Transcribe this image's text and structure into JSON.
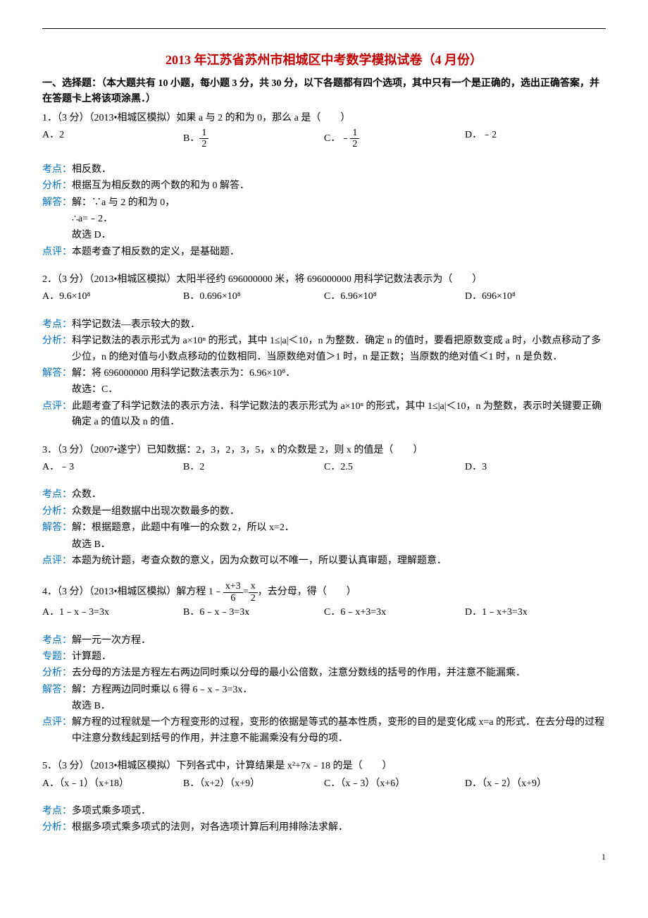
{
  "colors": {
    "red": "#c00000",
    "blue": "#0070c0",
    "text": "#000000",
    "bg": "#ffffff"
  },
  "title": "2013 年江苏省苏州市相城区中考数学模拟试卷（4 月份）",
  "section1": "一、选择题：（本大题共有 10 小题，每小题 3 分，共 30 分，以下各题都有四个选项，其中只有一个是正确的，选出正确答案，并在答题卡上将该项涂黑．）",
  "q1": {
    "text": "1．（3 分）（2013•相城区模拟）如果 a 与 2 的和为 0，那么 a 是（　　）",
    "A": "A．2",
    "B_pre": "B．",
    "B_num": "1",
    "B_den": "2",
    "C_pre": "C．﹣",
    "C_num": "1",
    "C_den": "2",
    "D": "D．﹣2",
    "kd": "相反数．",
    "fx": "根据互为相反数的两个数的和为 0 解答．",
    "jd1": "解：∵a 与 2 的和为 0，",
    "jd2": "∴a=﹣2．",
    "jd3": "故选 D．",
    "dp": "本题考查了相反数的定义，是基础题．"
  },
  "q2": {
    "text": "2．（3 分）（2013•相城区模拟）太阳半径约 696000000 米，将 696000000 用科学记数法表示为（　　）",
    "A": "A．9.6×10⁸",
    "B": "B．0.696×10⁸",
    "C": "C．6.96×10⁸",
    "D": "D．696×10⁸",
    "kd": "科学记数法—表示较大的数．",
    "fx": "科学记数法的表示形式为 a×10ⁿ 的形式，其中 1≤|a|＜10，n 为整数．确定 n 的值时，要看把原数变成 a 时，小数点移动了多少位，n 的绝对值与小数点移动的位数相同．当原数绝对值＞1 时，n 是正数；当原数的绝对值＜1 时，n 是负数．",
    "jd1": "解：将 696000000 用科学记数法表示为：6.96×10⁸．",
    "jd2": "故选：C．",
    "dp": "此题考查了科学记数法的表示方法．科学记数法的表示形式为 a×10ⁿ 的形式，其中 1≤|a|＜10，n 为整数，表示时关键要正确确定 a 的值以及 n 的值．"
  },
  "q3": {
    "text": "3．（3 分）（2007•遂宁）已知数据：2，3，2，3，5，x 的众数是 2，则 x 的值是（　　）",
    "A": "A．﹣3",
    "B": "B．2",
    "C": "C．2.5",
    "D": "D．3",
    "kd": "众数．",
    "fx": "众数是一组数据中出现次数最多的数．",
    "jd1": "解：根据题意，此题中有唯一的众数 2，所以 x=2．",
    "jd2": "故选 B．",
    "dp": "本题为统计题，考查众数的意义，因为众数可以不唯一，所以要认真审题，理解题意．"
  },
  "q4": {
    "text_pre": "4．（3 分）（2013•相城区模拟）解方程 1﹣",
    "f1n": "x+3",
    "f1d": "6",
    "mid": "=",
    "f2n": "x",
    "f2d": "2",
    "text_post": "，去分母，得（　　）",
    "A": "A．1﹣x﹣3=3x",
    "B": "B．6﹣x﹣3=3x",
    "C": "C．6﹣x+3=3x",
    "D": "D．1﹣x+3=3x",
    "kd": "解一元一次方程．",
    "zt": "计算题．",
    "fx": "去分母的方法是方程左右两边同时乘以分母的最小公倍数，注意分数线的括号的作用，并注意不能漏乘．",
    "jd1": "解：方程两边同时乘以 6 得 6﹣x﹣3=3x．",
    "jd2": "故选 B．",
    "dp": "解方程的过程就是一个方程变形的过程，变形的依据是等式的基本性质，变形的目的是变化成 x=a 的形式．在去分母的过程中注意分数线起到括号的作用，并注意不能漏乘没有分母的项．"
  },
  "q5": {
    "text": "5．（3 分）（2013•相城区模拟）下列各式中，计算结果是 x²+7x﹣18 的是（　　）",
    "A": "A．（x﹣1）（x+18）",
    "B": "B．（x+2）（x+9）",
    "C": "C．（x﹣3）（x+6）",
    "D": "D．（x﹣2）（x+9）",
    "kd": "多项式乘多项式．",
    "fx": "根据多项式乘多项式的法则，对各选项计算后利用排除法求解．"
  },
  "labels": {
    "kd": "考点：",
    "fx": "分析：",
    "jd": "解答：",
    "dp": "点评：",
    "zt": "专题："
  },
  "page": "1"
}
